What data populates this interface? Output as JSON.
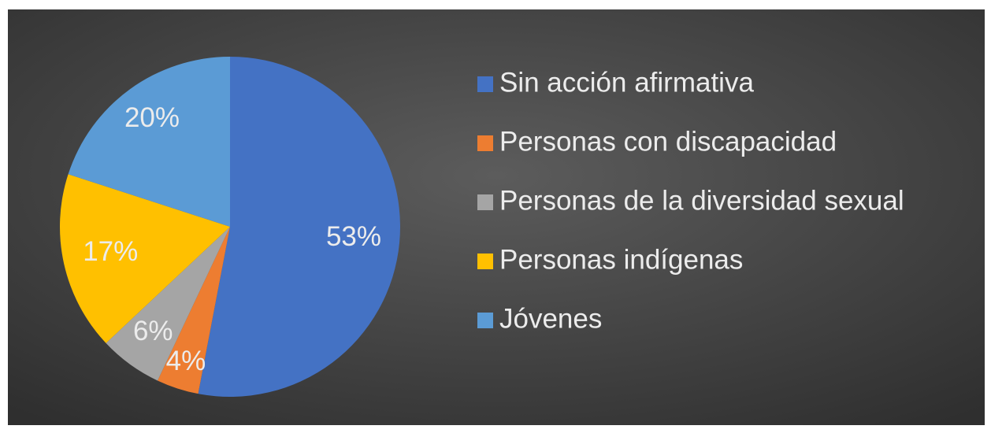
{
  "chart_data": {
    "type": "pie",
    "categories": [
      "Sin acción afirmativa",
      "Personas con discapacidad",
      "Personas de la diversidad sexual",
      "Personas indígenas",
      "Jóvenes"
    ],
    "values": [
      53,
      4,
      6,
      17,
      20
    ],
    "value_labels": [
      "53%",
      "4%",
      "6%",
      "17%",
      "20%"
    ],
    "colors": [
      "#4472c4",
      "#ed7d31",
      "#a5a5a5",
      "#ffc000",
      "#5b9bd5"
    ],
    "legend": "right"
  }
}
